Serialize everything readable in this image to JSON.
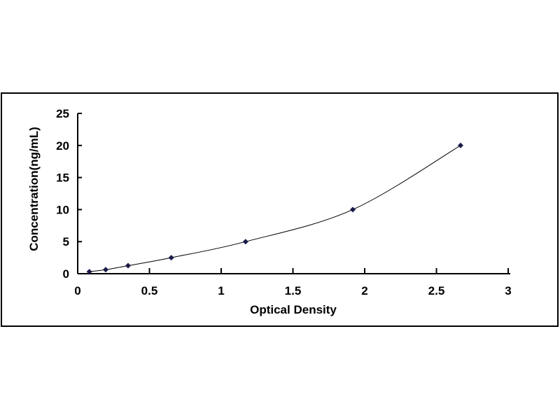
{
  "chart_data": {
    "type": "scatter",
    "title": "",
    "xlabel": "Optical Density",
    "ylabel": "Concentration(ng/mL)",
    "xlim": [
      0,
      3
    ],
    "ylim": [
      0,
      25
    ],
    "xticks": [
      "0",
      "0.5",
      "1",
      "1.5",
      "2",
      "2.5",
      "3"
    ],
    "yticks": [
      "0",
      "5",
      "10",
      "15",
      "20",
      "25"
    ],
    "grid": false,
    "legend": "none",
    "marker": "diamond",
    "marker_color": "#1a1a4a",
    "line_color": "#000000",
    "trendline": "smooth curve",
    "series": [
      {
        "x": [
          0.081,
          0.195,
          0.351,
          0.652,
          1.17,
          1.917,
          2.668
        ],
        "y": [
          0.312,
          0.625,
          1.25,
          2.5,
          5,
          10,
          20
        ]
      }
    ]
  }
}
